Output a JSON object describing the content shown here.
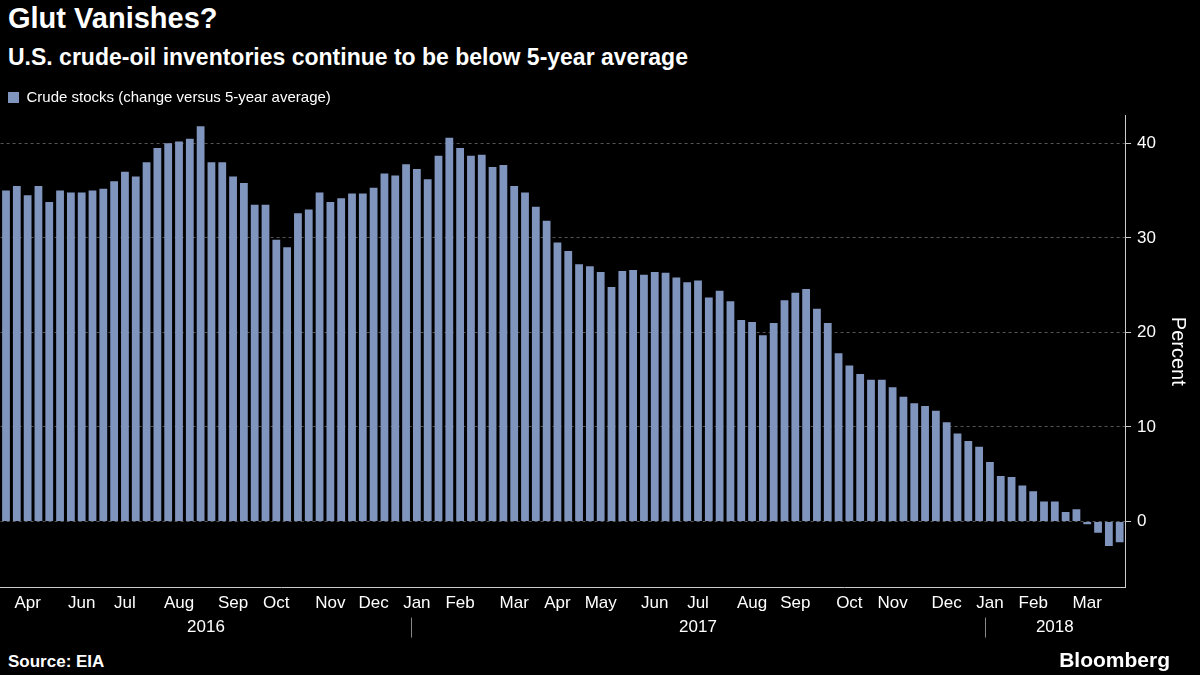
{
  "chart_data": {
    "type": "bar",
    "title": "Glut Vanishes?",
    "subtitle": "U.S. crude-oil inventories continue to be below 5-year average",
    "source": "Source: EIA",
    "credit": "Bloomberg",
    "ylabel": "Percent",
    "categories": [
      null,
      null,
      "Apr",
      null,
      null,
      null,
      null,
      "Jun",
      null,
      null,
      null,
      "Jul",
      null,
      null,
      null,
      null,
      "Aug",
      null,
      null,
      null,
      null,
      "Sep",
      null,
      null,
      null,
      "Oct",
      null,
      null,
      null,
      null,
      "Nov",
      null,
      null,
      null,
      "Dec",
      null,
      null,
      null,
      "Jan",
      null,
      null,
      null,
      "Feb",
      null,
      null,
      null,
      null,
      "Mar",
      null,
      null,
      null,
      "Apr",
      null,
      null,
      null,
      "May",
      null,
      null,
      null,
      null,
      "Jun",
      null,
      null,
      null,
      "Jul",
      null,
      null,
      null,
      null,
      "Aug",
      null,
      null,
      null,
      "Sep",
      null,
      null,
      null,
      null,
      "Oct",
      null,
      null,
      null,
      "Nov",
      null,
      null,
      null,
      null,
      "Dec",
      null,
      null,
      null,
      "Jan",
      null,
      null,
      null,
      "Feb",
      null,
      null,
      null,
      null,
      "Mar",
      null,
      null,
      null
    ],
    "category_years": [
      "2016",
      "2016",
      "2016",
      "2016",
      "2016",
      "2016",
      "2016",
      "2016",
      "2016",
      "2016",
      "2016",
      "2016",
      "2016",
      "2016",
      "2016",
      "2016",
      "2016",
      "2016",
      "2016",
      "2016",
      "2016",
      "2016",
      "2016",
      "2016",
      "2016",
      "2016",
      "2016",
      "2016",
      "2016",
      "2016",
      "2016",
      "2016",
      "2016",
      "2016",
      "2016",
      "2016",
      "2016",
      "2016",
      "2017",
      "2017",
      "2017",
      "2017",
      "2017",
      "2017",
      "2017",
      "2017",
      "2017",
      "2017",
      "2017",
      "2017",
      "2017",
      "2017",
      "2017",
      "2017",
      "2017",
      "2017",
      "2017",
      "2017",
      "2017",
      "2017",
      "2017",
      "2017",
      "2017",
      "2017",
      "2017",
      "2017",
      "2017",
      "2017",
      "2017",
      "2017",
      "2017",
      "2017",
      "2017",
      "2017",
      "2017",
      "2017",
      "2017",
      "2017",
      "2017",
      "2017",
      "2017",
      "2017",
      "2017",
      "2017",
      "2017",
      "2017",
      "2017",
      "2017",
      "2017",
      "2017",
      "2017",
      "2018",
      "2018",
      "2018",
      "2018",
      "2018",
      "2018",
      "2018",
      "2018",
      "2018",
      "2018",
      "2018",
      "2018",
      "2018"
    ],
    "series": [
      {
        "name": "Crude stocks (change versus 5-year average)",
        "color": "#8095bd",
        "values": [
          35,
          35.5,
          34.5,
          35.5,
          33.8,
          35,
          34.8,
          34.8,
          35,
          35.2,
          36,
          37,
          36.5,
          38,
          39.5,
          40,
          40.2,
          40.5,
          41.8,
          38,
          38,
          36.5,
          35.8,
          33.5,
          33.5,
          29.8,
          29,
          32.6,
          33,
          34.8,
          33.8,
          34.2,
          34.7,
          34.7,
          35.3,
          36.8,
          36.6,
          37.8,
          37.3,
          36.2,
          38.7,
          40.6,
          39.5,
          38.7,
          38.8,
          37.5,
          37.7,
          35.5,
          34.8,
          33.3,
          31.8,
          29.5,
          28.6,
          27.2,
          27,
          26.4,
          24.8,
          26.5,
          26.6,
          26.1,
          26.4,
          26.3,
          25.8,
          25.3,
          25.5,
          23.7,
          24.4,
          23.3,
          21.3,
          21.1,
          19.7,
          21,
          23.4,
          24.2,
          24.6,
          22.5,
          21,
          17.8,
          16.5,
          15.6,
          15,
          15,
          14.2,
          13.2,
          12.5,
          12.2,
          11.7,
          10.5,
          9.3,
          8.5,
          7.9,
          6.3,
          4.8,
          4.7,
          3.8,
          3.2,
          2.1,
          2.1,
          1,
          1.3,
          -0.3,
          -1.2,
          -2.6,
          -2.2
        ]
      }
    ],
    "ylim": [
      -7,
      43
    ],
    "yticks": [
      0,
      10,
      20,
      30,
      40
    ],
    "grid": true,
    "legend": "top-left"
  }
}
